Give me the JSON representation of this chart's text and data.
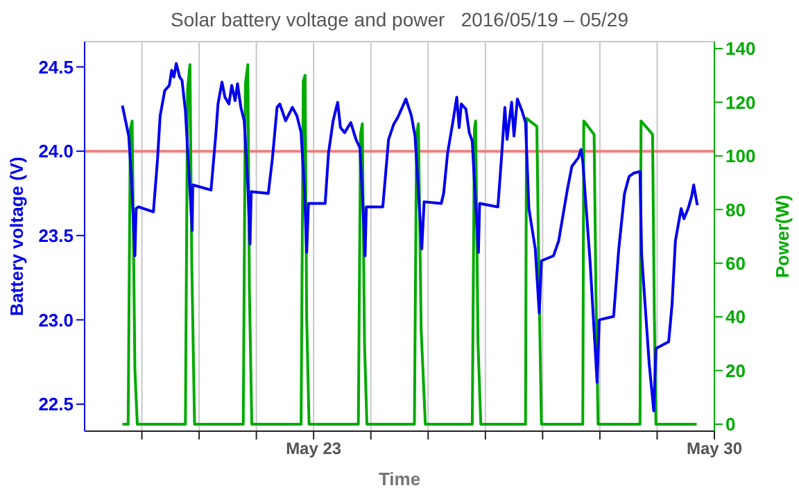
{
  "chart_data": {
    "type": "line",
    "title": "Solar battery voltage and power   2016/05/19 – 05/29",
    "xlabel": "Time",
    "ylabel": "Battery voltage (V)",
    "y2label": "Power(W)",
    "xlim": [
      "2016-05-19",
      "2016-05-30"
    ],
    "xticks": [
      {
        "value": "2016-05-20",
        "label": null
      },
      {
        "value": "2016-05-21",
        "label": null
      },
      {
        "value": "2016-05-22",
        "label": null
      },
      {
        "value": "2016-05-23",
        "label": "May 23"
      },
      {
        "value": "2016-05-24",
        "label": null
      },
      {
        "value": "2016-05-25",
        "label": null
      },
      {
        "value": "2016-05-26",
        "label": null
      },
      {
        "value": "2016-05-27",
        "label": null
      },
      {
        "value": "2016-05-28",
        "label": null
      },
      {
        "value": "2016-05-29",
        "label": null
      },
      {
        "value": "2016-05-30",
        "label": "May 30"
      }
    ],
    "ylim": [
      22.34,
      24.65
    ],
    "yticks": [
      22.5,
      {
        "value": 23,
        "label": "23.0"
      },
      23.5,
      {
        "value": 24,
        "label": "24.0"
      },
      24.5
    ],
    "y2lim": [
      -2.6,
      142.6
    ],
    "y2ticks": [
      0,
      20,
      40,
      60,
      80,
      100,
      120,
      140
    ],
    "grid": true,
    "legend": false,
    "marker": "none",
    "line_style": "solid",
    "ref_lines": [
      {
        "axis": "y",
        "value": 24,
        "color": "#f08080"
      }
    ],
    "series": [
      {
        "color": "#0000ee",
        "x": [
          "2016-05-19T15:50",
          "2016-05-19T18:30",
          "2016-05-19T19:40",
          "2016-05-19T21:05",
          "2016-05-19T21:35",
          "2016-05-19T22:35",
          "2016-05-20T04:50",
          "2016-05-20T06:30",
          "2016-05-20T07:40",
          "2016-05-20T09:35",
          "2016-05-20T11:30",
          "2016-05-20T12:30",
          "2016-05-20T13:25",
          "2016-05-20T14:25",
          "2016-05-20T15:50",
          "2016-05-20T16:50",
          "2016-05-20T18:15",
          "2016-05-20T19:55",
          "2016-05-20T21:05",
          "2016-05-20T21:20",
          "2016-05-21T05:00",
          "2016-05-21T07:00",
          "2016-05-21T07:55",
          "2016-05-21T09:35",
          "2016-05-21T10:50",
          "2016-05-21T12:30",
          "2016-05-21T13:40",
          "2016-05-21T15:05",
          "2016-05-21T16:05",
          "2016-05-21T17:30",
          "2016-05-21T18:55",
          "2016-05-21T20:25",
          "2016-05-21T21:20",
          "2016-05-21T21:50",
          "2016-05-22T05:00",
          "2016-05-22T06:45",
          "2016-05-22T08:40",
          "2016-05-22T09:50",
          "2016-05-22T12:15",
          "2016-05-22T15:05",
          "2016-05-22T17:00",
          "2016-05-22T18:45",
          "2016-05-22T20:10",
          "2016-05-22T21:05",
          "2016-05-22T21:50",
          "2016-05-23T04:50",
          "2016-05-23T06:15",
          "2016-05-23T08:10",
          "2016-05-23T10:05",
          "2016-05-23T11:15",
          "2016-05-23T13:00",
          "2016-05-23T15:35",
          "2016-05-23T17:45",
          "2016-05-23T19:25",
          "2016-05-23T20:40",
          "2016-05-23T21:35",
          "2016-05-23T22:05",
          "2016-05-24T05:00",
          "2016-05-24T07:25",
          "2016-05-24T09:35",
          "2016-05-24T11:15",
          "2016-05-24T13:10",
          "2016-05-24T14:40",
          "2016-05-24T17:00",
          "2016-05-24T18:30",
          "2016-05-24T19:55",
          "2016-05-24T21:20",
          "2016-05-24T22:20",
          "2016-05-25T05:30",
          "2016-05-25T06:30",
          "2016-05-25T08:10",
          "2016-05-25T10:20",
          "2016-05-25T12:00",
          "2016-05-25T13:00",
          "2016-05-25T13:55",
          "2016-05-25T15:50",
          "2016-05-25T17:15",
          "2016-05-25T18:30",
          "2016-05-25T19:40",
          "2016-05-25T21:05",
          "2016-05-25T21:35",
          "2016-05-26T05:15",
          "2016-05-26T06:45",
          "2016-05-26T08:10",
          "2016-05-26T09:05",
          "2016-05-26T11:00",
          "2016-05-26T12:00",
          "2016-05-26T13:25",
          "2016-05-26T15:20",
          "2016-05-26T16:50",
          "2016-05-26T18:15",
          "2016-05-26T20:55",
          "2016-05-26T22:35",
          "2016-05-26T23:30",
          "2016-05-27T04:35",
          "2016-05-27T06:45",
          "2016-05-27T08:25",
          "2016-05-27T10:20",
          "2016-05-27T12:15",
          "2016-05-27T14:55",
          "2016-05-27T16:05",
          "2016-05-27T16:50",
          "2016-05-27T19:55",
          "2016-05-27T22:50",
          "2016-05-27T23:45",
          "2016-05-28T05:45",
          "2016-05-28T07:55",
          "2016-05-28T10:20",
          "2016-05-28T12:15",
          "2016-05-28T14:10",
          "2016-05-28T16:50",
          "2016-05-28T17:30",
          "2016-05-28T20:40",
          "2016-05-28T22:35",
          "2016-05-28T23:30",
          "2016-05-29T04:50",
          "2016-05-29T06:15",
          "2016-05-29T07:40",
          "2016-05-29T10:05",
          "2016-05-29T11:15",
          "2016-05-29T13:00",
          "2016-05-29T14:25",
          "2016-05-29T15:20",
          "2016-05-29T16:50"
        ],
        "values": [
          24.27,
          24.09,
          23.83,
          23.38,
          23.66,
          23.67,
          23.64,
          23.94,
          24.21,
          24.36,
          24.39,
          24.48,
          24.44,
          24.52,
          24.44,
          24.42,
          24.24,
          23.83,
          23.53,
          23.8,
          23.77,
          24.1,
          24.28,
          24.41,
          24.32,
          24.28,
          24.39,
          24.3,
          24.4,
          24.26,
          24.18,
          23.8,
          23.45,
          23.76,
          23.75,
          23.96,
          24.26,
          24.28,
          24.18,
          24.26,
          24.21,
          24.11,
          23.77,
          23.4,
          23.69,
          23.69,
          23.99,
          24.18,
          24.29,
          24.14,
          24.11,
          24.17,
          24.07,
          24.02,
          23.68,
          23.38,
          23.67,
          23.67,
          24.07,
          24.16,
          24.2,
          24.26,
          24.31,
          24.21,
          24.09,
          23.77,
          23.42,
          23.7,
          23.69,
          23.75,
          23.99,
          24.17,
          24.32,
          24.14,
          24.28,
          24.25,
          24.11,
          24.06,
          23.75,
          23.4,
          23.69,
          23.67,
          23.96,
          24.26,
          24.07,
          24.29,
          24.09,
          24.31,
          24.24,
          24.17,
          23.66,
          23.42,
          23.04,
          23.35,
          23.38,
          23.47,
          23.61,
          23.77,
          23.91,
          23.96,
          24.01,
          23.94,
          23.34,
          22.63,
          23.0,
          23.02,
          23.42,
          23.75,
          23.85,
          23.87,
          23.88,
          23.39,
          22.74,
          22.46,
          22.83,
          22.87,
          23.09,
          23.47,
          23.66,
          23.6,
          23.66,
          23.73,
          23.8,
          23.68
        ]
      },
      {
        "color": "#00aa00",
        "axis": "y2",
        "x": [
          "2016-05-19T15:50",
          "2016-05-19T18:15",
          "2016-05-19T19:10",
          "2016-05-19T19:55",
          "2016-05-19T21:05",
          "2016-05-19T22:05",
          "2016-05-20T18:15",
          "2016-05-20T19:10",
          "2016-05-20T20:10",
          "2016-05-20T20:55",
          "2016-05-20T22:05",
          "2016-05-21T18:30",
          "2016-05-21T19:25",
          "2016-05-21T20:25",
          "2016-05-21T21:05",
          "2016-05-21T22:05",
          "2016-05-22T18:45",
          "2016-05-22T19:40",
          "2016-05-22T20:25",
          "2016-05-22T21:05",
          "2016-05-22T22:05",
          "2016-05-23T18:45",
          "2016-05-23T19:40",
          "2016-05-23T20:25",
          "2016-05-23T21:20",
          "2016-05-23T22:20",
          "2016-05-24T18:15",
          "2016-05-24T19:10",
          "2016-05-24T19:55",
          "2016-05-24T21:05",
          "2016-05-24T22:50",
          "2016-05-25T18:30",
          "2016-05-25T19:25",
          "2016-05-25T19:55",
          "2016-05-25T20:55",
          "2016-05-25T22:05",
          "2016-05-26T16:50",
          "2016-05-26T17:15",
          "2016-05-26T21:35",
          "2016-05-26T22:20",
          "2016-05-26T23:30",
          "2016-05-27T16:50",
          "2016-05-27T17:15",
          "2016-05-27T21:35",
          "2016-05-27T22:20",
          "2016-05-27T23:15",
          "2016-05-28T16:50",
          "2016-05-28T17:15",
          "2016-05-28T22:05",
          "2016-05-28T22:50",
          "2016-05-28T23:30",
          "2016-05-29T16:35"
        ],
        "values": [
          0,
          0,
          110,
          113,
          20,
          0,
          0,
          125,
          134,
          60,
          0,
          0,
          127,
          134,
          50,
          0,
          0,
          128,
          130,
          40,
          0,
          0,
          108,
          112,
          30,
          0,
          0,
          108,
          112,
          35,
          0,
          0,
          110,
          113,
          30,
          0,
          0,
          114,
          111,
          60,
          0,
          0,
          113,
          108,
          50,
          0,
          0,
          113,
          108,
          40,
          0,
          0
        ]
      }
    ]
  }
}
